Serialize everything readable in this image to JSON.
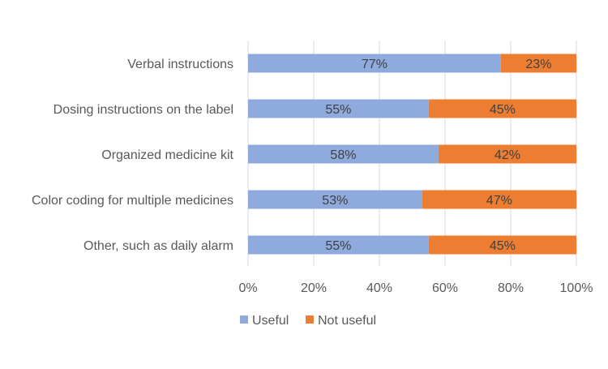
{
  "chart_data": {
    "type": "bar",
    "orientation": "horizontal",
    "stacked": "percent",
    "categories": [
      "Verbal instructions",
      "Dosing instructions on the label",
      "Organized medicine kit",
      "Color coding for multiple medicines",
      "Other, such as daily alarm"
    ],
    "series": [
      {
        "name": "Useful",
        "values": [
          77,
          55,
          58,
          53,
          55
        ],
        "labels": [
          "77%",
          "55%",
          "58%",
          "53%",
          "55%"
        ],
        "color": "#8faadc"
      },
      {
        "name": "Not useful",
        "values": [
          23,
          45,
          42,
          47,
          45
        ],
        "labels": [
          "23%",
          "45%",
          "42%",
          "47%",
          "45%"
        ],
        "color": "#ed7d31"
      }
    ],
    "xlim": [
      0,
      100
    ],
    "xticks": [
      0,
      20,
      40,
      60,
      80,
      100
    ],
    "xtick_labels": [
      "0%",
      "20%",
      "40%",
      "60%",
      "80%",
      "100%"
    ],
    "grid": "vertical",
    "legend": "bottom",
    "text_color": "#595959",
    "grid_color": "#d9d9d9"
  }
}
